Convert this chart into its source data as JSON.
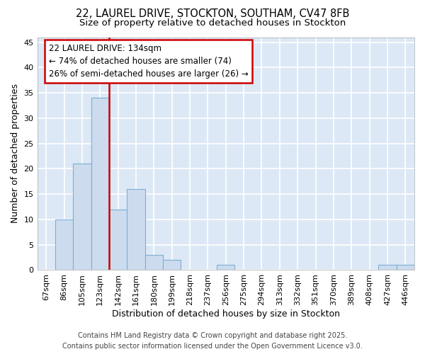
{
  "title_line1": "22, LAUREL DRIVE, STOCKTON, SOUTHAM, CV47 8FB",
  "title_line2": "Size of property relative to detached houses in Stockton",
  "xlabel": "Distribution of detached houses by size in Stockton",
  "ylabel": "Number of detached properties",
  "bin_labels": [
    "67sqm",
    "86sqm",
    "105sqm",
    "123sqm",
    "142sqm",
    "161sqm",
    "180sqm",
    "199sqm",
    "218sqm",
    "237sqm",
    "256sqm",
    "275sqm",
    "294sqm",
    "313sqm",
    "332sqm",
    "351sqm",
    "370sqm",
    "389sqm",
    "408sqm",
    "427sqm",
    "446sqm"
  ],
  "bar_values": [
    0,
    10,
    21,
    34,
    12,
    16,
    3,
    2,
    0,
    0,
    1,
    0,
    0,
    0,
    0,
    0,
    0,
    0,
    0,
    1,
    1
  ],
  "bar_color": "#ccdcee",
  "bar_edge_color": "#7bafd4",
  "annotation_text": "22 LAUREL DRIVE: 134sqm\n← 74% of detached houses are smaller (74)\n26% of semi-detached houses are larger (26) →",
  "annotation_box_color": "white",
  "annotation_box_edge_color": "#cc0000",
  "red_line_color": "#cc0000",
  "ylim": [
    0,
    46
  ],
  "yticks": [
    0,
    5,
    10,
    15,
    20,
    25,
    30,
    35,
    40,
    45
  ],
  "fig_background": "white",
  "plot_background": "#dce8f5",
  "grid_color": "white",
  "footer_line1": "Contains HM Land Registry data © Crown copyright and database right 2025.",
  "footer_line2": "Contains public sector information licensed under the Open Government Licence v3.0.",
  "title_fontsize": 10.5,
  "subtitle_fontsize": 9.5,
  "axis_label_fontsize": 9,
  "tick_fontsize": 8,
  "annotation_fontsize": 8.5,
  "footer_fontsize": 7
}
